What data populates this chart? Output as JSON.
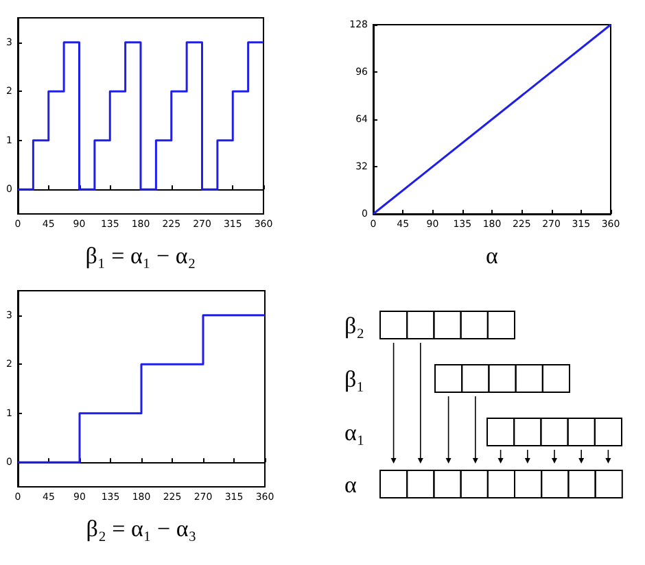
{
  "chart_data": [
    {
      "type": "step",
      "xlabel": "β₁ = α₁ − α₂",
      "x": [
        0,
        22.5,
        45,
        67.5,
        90,
        112.5,
        135,
        157.5,
        180,
        202.5,
        225,
        247.5,
        270,
        292.5,
        315,
        337.5,
        360
      ],
      "values": [
        0,
        1,
        2,
        3,
        0,
        1,
        2,
        3,
        0,
        1,
        2,
        3,
        0,
        1,
        2,
        3,
        3
      ],
      "color": "#1f1fe6",
      "xlim": [
        0,
        360
      ],
      "xticks": [
        0,
        45,
        90,
        135,
        180,
        225,
        270,
        315,
        360
      ],
      "ylim": [
        -0.5,
        3.5
      ],
      "yticks": [
        0,
        1,
        2,
        3
      ]
    },
    {
      "type": "line",
      "xlabel": "α",
      "x": [
        0,
        360
      ],
      "values": [
        0,
        128
      ],
      "color": "#1f1fe6",
      "xlim": [
        0,
        360
      ],
      "xticks": [
        0,
        45,
        90,
        135,
        180,
        225,
        270,
        315,
        360
      ],
      "ylim": [
        0,
        128
      ],
      "yticks": [
        0,
        32,
        64,
        96,
        128
      ]
    },
    {
      "type": "step",
      "xlabel": "β₂ = α₁ − α₃",
      "x": [
        0,
        90,
        180,
        270,
        360
      ],
      "values": [
        0,
        1,
        2,
        3,
        3
      ],
      "color": "#1f1fe6",
      "xlim": [
        0,
        360
      ],
      "xticks": [
        0,
        45,
        90,
        135,
        180,
        225,
        270,
        315,
        360
      ],
      "ylim": [
        -0.5,
        3.5
      ],
      "yticks": [
        0,
        1,
        2,
        3
      ]
    },
    {
      "type": "other",
      "annotations": [
        "β₂",
        "β₁",
        "α₁",
        "α"
      ]
    }
  ]
}
